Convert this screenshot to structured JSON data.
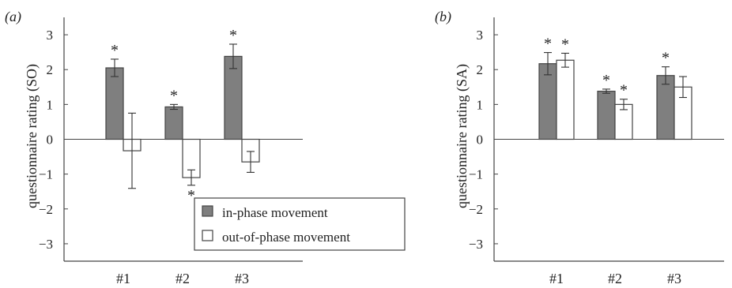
{
  "chart_data": [
    {
      "type": "bar",
      "panel_label": "(a)",
      "ylabel": "questionnaire rating (SO)",
      "ylim": [
        -3.5,
        3.5
      ],
      "yticks": [
        "3",
        "2",
        "1",
        "0",
        "−1",
        "−2",
        "−3"
      ],
      "ytick_values": [
        3,
        2,
        1,
        0,
        -1,
        -2,
        -3
      ],
      "categories": [
        "#1",
        "#2",
        "#3"
      ],
      "series": [
        {
          "name": "in-phase movement",
          "values": [
            2.05,
            0.93,
            2.38
          ],
          "errors": [
            0.25,
            0.07,
            0.35
          ],
          "color": "#7f7f7f",
          "significant": [
            true,
            true,
            true
          ]
        },
        {
          "name": "out-of-phase movement",
          "values": [
            -0.33,
            -1.1,
            -0.65
          ],
          "errors": [
            1.08,
            0.22,
            0.3
          ],
          "color": "#ffffff",
          "significant": [
            false,
            true,
            false
          ]
        }
      ],
      "significance_marker": "*",
      "legend": {
        "placement": "bottom-right",
        "entries": [
          "in-phase movement",
          "out-of-phase movement"
        ]
      }
    },
    {
      "type": "bar",
      "panel_label": "(b)",
      "ylabel": "questionnaire rating (SA)",
      "ylim": [
        -3.5,
        3.5
      ],
      "yticks": [
        "3",
        "2",
        "1",
        "0",
        "−1",
        "−2",
        "−3"
      ],
      "ytick_values": [
        3,
        2,
        1,
        0,
        -1,
        -2,
        -3
      ],
      "categories": [
        "#1",
        "#2",
        "#3"
      ],
      "series": [
        {
          "name": "in-phase movement",
          "values": [
            2.17,
            1.38,
            1.83
          ],
          "errors": [
            0.32,
            0.06,
            0.25
          ],
          "color": "#7f7f7f",
          "significant": [
            true,
            true,
            true
          ]
        },
        {
          "name": "out-of-phase movement",
          "values": [
            2.27,
            1.0,
            1.5
          ],
          "errors": [
            0.2,
            0.15,
            0.3
          ],
          "color": "#ffffff",
          "significant": [
            true,
            true,
            false
          ]
        }
      ],
      "significance_marker": "*"
    }
  ]
}
